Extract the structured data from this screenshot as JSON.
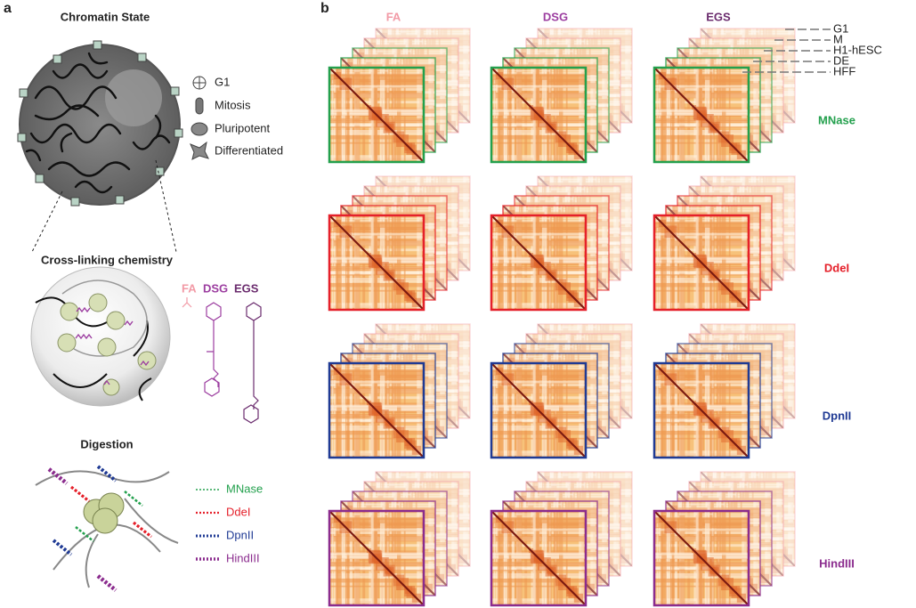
{
  "panel_a": {
    "label": "a",
    "chromatin_state": {
      "title": "Chromatin State",
      "legend": [
        "G1",
        "Mitosis",
        "Pluripotent",
        "Differentiated"
      ]
    },
    "crosslinking": {
      "title": "Cross-linking chemistry",
      "reagents": [
        {
          "name": "FA",
          "color": "#f29aa6"
        },
        {
          "name": "DSG",
          "color": "#9c3ea0"
        },
        {
          "name": "EGS",
          "color": "#6b2c6e"
        }
      ]
    },
    "digestion": {
      "title": "Digestion",
      "enzymes": [
        {
          "name": "MNase",
          "color": "#23a04d"
        },
        {
          "name": "DdeI",
          "color": "#e5202a"
        },
        {
          "name": "DpnII",
          "color": "#1f3a94"
        },
        {
          "name": "HindIII",
          "color": "#8b2c8e"
        }
      ]
    }
  },
  "panel_b": {
    "label": "b",
    "columns": [
      {
        "name": "FA",
        "color": "#f29aa6"
      },
      {
        "name": "DSG",
        "color": "#9c3ea0"
      },
      {
        "name": "EGS",
        "color": "#6b2c6e"
      }
    ],
    "rows": [
      {
        "name": "MNase",
        "color": "#23a04d"
      },
      {
        "name": "DdeI",
        "color": "#e5202a"
      },
      {
        "name": "DpnII",
        "color": "#1f3a94"
      },
      {
        "name": "HindIII",
        "color": "#8b2c8e"
      }
    ],
    "stack_legend": [
      "G1",
      "M",
      "H1-hESC",
      "DE",
      "HFF"
    ]
  }
}
